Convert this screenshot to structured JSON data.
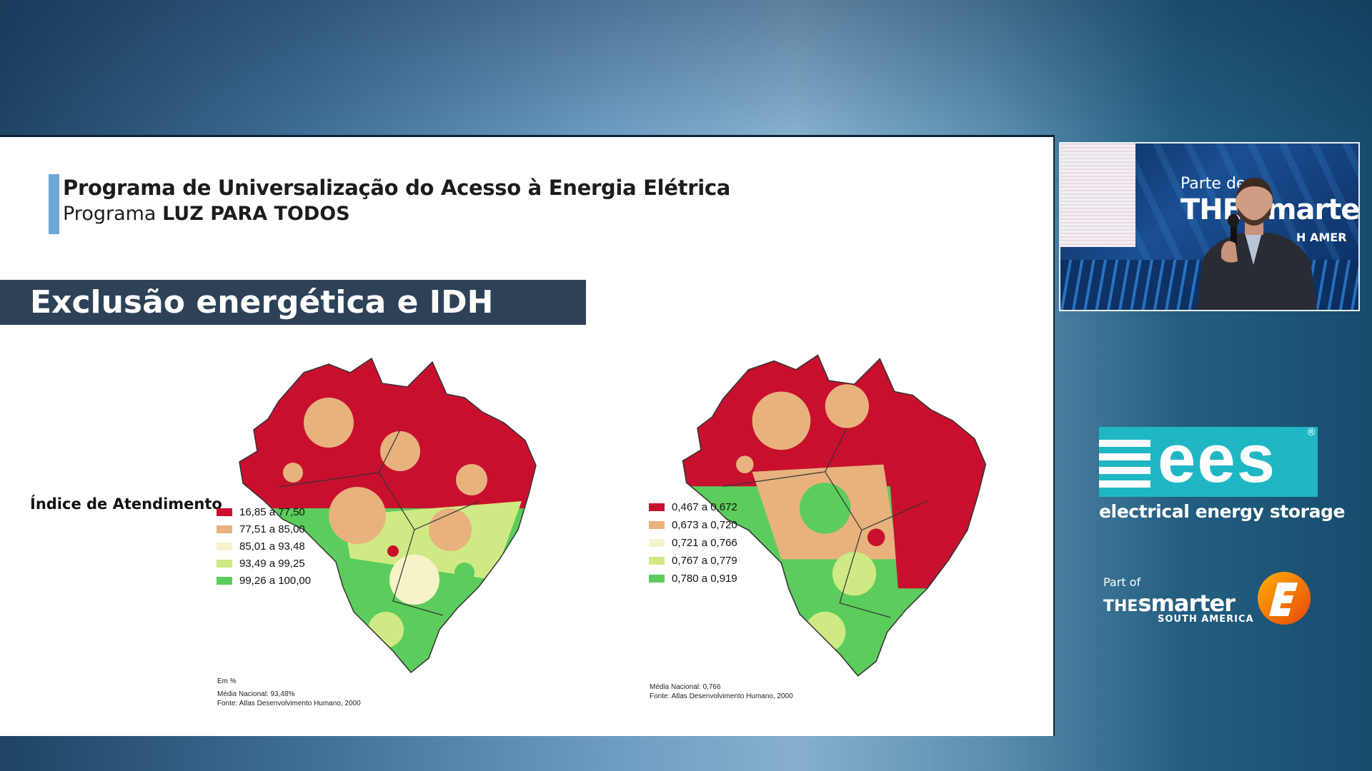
{
  "slide": {
    "title_line1": "Programa de Universalização do Acesso à Energia Elétrica",
    "title_line2_prefix": "Programa ",
    "title_line2_bold": "LUZ PARA TODOS",
    "banner": "Exclusão energética e IDH",
    "side_label": "Índice de Atendimento",
    "map_left": {
      "legend": [
        {
          "label": "16,85 a 77,50",
          "color": "#c8102e"
        },
        {
          "label": "77,51 a 85,00",
          "color": "#e8b27e"
        },
        {
          "label": "85,01 a 93,48",
          "color": "#f6f3c9"
        },
        {
          "label": "93,49 a 99,25",
          "color": "#cfea84"
        },
        {
          "label": "99,26 a 100,00",
          "color": "#5ccc5c"
        }
      ],
      "note_unit": "Em %",
      "note_media": "Média Nacional: 93,48%",
      "note_fonte": "Fonte: Atlas Desenvolvimento Humano, 2000"
    },
    "map_right": {
      "legend": [
        {
          "label": "0,467 a 0,672",
          "color": "#c8102e"
        },
        {
          "label": "0,673 a 0,720",
          "color": "#e8b27e"
        },
        {
          "label": "0,721 a 0,766",
          "color": "#f6f3c9"
        },
        {
          "label": "0,767 a 0,779",
          "color": "#cfea84"
        },
        {
          "label": "0,780 a 0,919",
          "color": "#5ccc5c"
        }
      ],
      "note_media": "Média Nacional: 0,766",
      "note_fonte": "Fonte: Atlas Desenvolvimento Humano, 2000"
    }
  },
  "camera": {
    "backdrop_line1": "Parte de",
    "backdrop_line2": "THE smarte",
    "backdrop_line3": "H AMER"
  },
  "ees_logo": {
    "mark": "ees",
    "subtitle": "electrical energy storage"
  },
  "smarter_logo": {
    "part_of": "Part of",
    "the": "THE",
    "smarter": "smarter",
    "south_america": "SOUTH AMERICA"
  }
}
